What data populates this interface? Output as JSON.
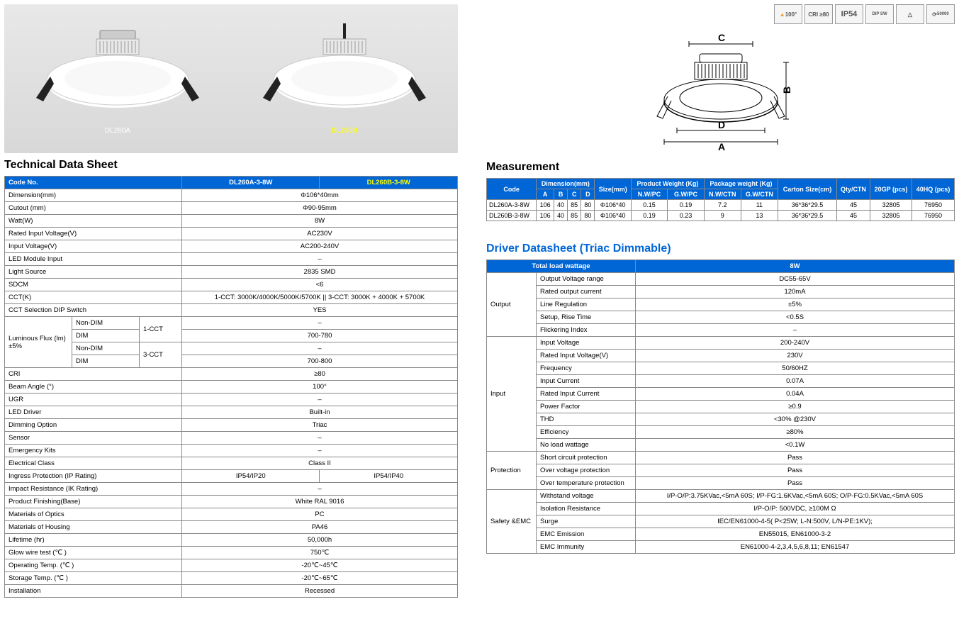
{
  "tech": {
    "title": "Technical Data Sheet",
    "header": {
      "code": "Code No.",
      "col1": "DL260A-3-8W",
      "col2": "DL260B-3-8W"
    },
    "products": {
      "a": "DL260A",
      "b": "DL260B"
    },
    "rows": [
      {
        "label": "Dimension(mm)",
        "value": "Φ106*40mm",
        "span": 2
      },
      {
        "label": "Cutout (mm)",
        "value": "Φ90-95mm",
        "span": 2
      },
      {
        "label": "Watt(W)",
        "value": "8W",
        "span": 2
      },
      {
        "label": "Rated Input Voltage(V)",
        "value": "AC230V",
        "span": 2
      },
      {
        "label": "Input Voltage(V)",
        "value": "AC200-240V",
        "span": 2
      },
      {
        "label": "LED Module Input",
        "value": "–",
        "span": 2
      },
      {
        "label": "Light Source",
        "value": "2835 SMD",
        "span": 2
      },
      {
        "label": "SDCM",
        "value": "<6",
        "span": 2
      },
      {
        "label": "CCT(K)",
        "value": "1-CCT: 3000K/4000K/5000K/5700K  ||  3-CCT: 3000K + 4000K + 5700K",
        "span": 2
      },
      {
        "label": "CCT Selection DIP Switch",
        "value": "YES",
        "span": 2
      }
    ],
    "lumen": {
      "label": "Luminous Flux (lm) ±5%",
      "sub": [
        {
          "dim": "Non-DIM",
          "cct": "1-CCT",
          "val": "–"
        },
        {
          "dim": "DIM",
          "cct": "",
          "val": "700-780"
        },
        {
          "dim": "Non-DIM",
          "cct": "3-CCT",
          "val": "–"
        },
        {
          "dim": "DIM",
          "cct": "",
          "val": "700-800"
        }
      ]
    },
    "rows2": [
      {
        "label": "CRI",
        "value": "≥80",
        "span": 2
      },
      {
        "label": "Beam Angle (°)",
        "value": "100°",
        "span": 2
      },
      {
        "label": "UGR",
        "value": "–",
        "span": 2
      },
      {
        "label": "LED Driver",
        "value": "Built-in",
        "span": 2
      },
      {
        "label": "Dimming  Option",
        "value": "Triac",
        "span": 2
      },
      {
        "label": "Sensor",
        "value": "–",
        "span": 2
      },
      {
        "label": "Emergency Kits",
        "value": "–",
        "span": 2
      },
      {
        "label": "Electrical Class",
        "value": "Class II",
        "span": 2
      }
    ],
    "ip_row": {
      "label": "Ingress Protection (IP Rating)",
      "v1": "IP54/IP20",
      "v2": "IP54/IP40"
    },
    "rows3": [
      {
        "label": "Impact Resistance (IK Rating)",
        "value": "–",
        "span": 2
      },
      {
        "label": "Product Finishing(Base)",
        "value": "White RAL 9016",
        "span": 2
      },
      {
        "label": "Materials of Optics",
        "value": "PC",
        "span": 2
      },
      {
        "label": "Materials of Housing",
        "value": "PA46",
        "span": 2
      },
      {
        "label": "Lifetime (hr)",
        "value": "50,000h",
        "span": 2
      },
      {
        "label": "Glow wire test (℃ )",
        "value": "750℃",
        "span": 2
      },
      {
        "label": "Operating Temp. (℃ )",
        "value": "-20℃~45℃",
        "span": 2
      },
      {
        "label": "Storage Temp. (℃ )",
        "value": "-20℃~65℃",
        "span": 2
      },
      {
        "label": "Installation",
        "value": "Recessed",
        "span": 2
      }
    ]
  },
  "certs": [
    "100°",
    "CRI ≥80",
    "IP54",
    "DIP SW",
    "△",
    "50000"
  ],
  "diagram_labels": {
    "a": "A",
    "b": "B",
    "c": "C",
    "d": "D"
  },
  "measurement": {
    "title": "Measurement",
    "headers": {
      "code": "Code",
      "dim": "Dimension(mm)",
      "size": "Size(mm)",
      "pw": "Product Weight (Kg)",
      "pkg": "Package weight (Kg)",
      "carton": "Carton Size(cm)",
      "qty": "Qty/CTN",
      "g20": "20GP (pcs)",
      "h40": "40HQ (pcs)",
      "a": "A",
      "b": "B",
      "c": "C",
      "d": "D",
      "nwpc": "N.W/PC",
      "gwpc": "G.W/PC",
      "nwctn": "N.W/CTN",
      "gwctn": "G.W/CTN"
    },
    "rows": [
      {
        "code": "DL260A-3-8W",
        "a": "106",
        "b": "40",
        "c": "85",
        "d": "80",
        "size": "Φ106*40",
        "nwpc": "0.15",
        "gwpc": "0.19",
        "nwctn": "7.2",
        "gwctn": "11",
        "carton": "36*36*29.5",
        "qty": "45",
        "g20": "32805",
        "h40": "76950"
      },
      {
        "code": "DL260B-3-8W",
        "a": "106",
        "b": "40",
        "c": "85",
        "d": "80",
        "size": "Φ106*40",
        "nwpc": "0.19",
        "gwpc": "0.23",
        "nwctn": "9",
        "gwctn": "13",
        "carton": "36*36*29.5",
        "qty": "45",
        "g20": "32805",
        "h40": "76950"
      }
    ]
  },
  "driver": {
    "title": "Driver Datasheet (Triac Dimmable)",
    "header": {
      "total": "Total load wattage",
      "val": "8W"
    },
    "sections": [
      {
        "name": "Output",
        "rows": [
          {
            "l": "Output Voltage range",
            "v": "DC55-65V"
          },
          {
            "l": "Rated output current",
            "v": "120mA"
          },
          {
            "l": "Line Regulation",
            "v": "±5%"
          },
          {
            "l": "Setup, Rise Time",
            "v": "<0.5S"
          },
          {
            "l": "Flickering Index",
            "v": "–"
          }
        ]
      },
      {
        "name": "Input",
        "rows": [
          {
            "l": "Input Voltage",
            "v": "200-240V"
          },
          {
            "l": "Rated Input Voltage(V)",
            "v": "230V"
          },
          {
            "l": "Frequency",
            "v": "50/60HZ"
          },
          {
            "l": "Input Current",
            "v": "0.07A"
          },
          {
            "l": "Rated Input Current",
            "v": "0.04A"
          },
          {
            "l": "Power Factor",
            "v": "≥0.9"
          },
          {
            "l": "THD",
            "v": "<30% @230V"
          },
          {
            "l": "Efficiency",
            "v": "≥80%"
          },
          {
            "l": "No load wattage",
            "v": "<0.1W"
          }
        ]
      },
      {
        "name": "Protection",
        "rows": [
          {
            "l": "Short circuit protection",
            "v": "Pass"
          },
          {
            "l": "Over voltage protection",
            "v": "Pass"
          },
          {
            "l": "Over temperature protection",
            "v": "Pass"
          }
        ]
      },
      {
        "name": "Safety &EMC",
        "rows": [
          {
            "l": "Withstand voltage",
            "v": "I/P-O/P:3.75KVac,<5mA 60S;  I/P-FG:1.6KVac,<5mA 60S;  O/P-FG:0.5KVac,<5mA 60S"
          },
          {
            "l": "Isolation Resistance",
            "v": "I/P-O/P: 500VDC, ≥100M Ω"
          },
          {
            "l": "Surge",
            "v": "IEC/EN61000-4-5( P<25W; L-N:500V, L/N-PE:1KV);"
          },
          {
            "l": "EMC Emission",
            "v": "EN55015, EN61000-3-2"
          },
          {
            "l": "EMC Immunity",
            "v": "EN61000-4-2,3,4,5,6,8,11; EN61547"
          }
        ]
      }
    ]
  }
}
